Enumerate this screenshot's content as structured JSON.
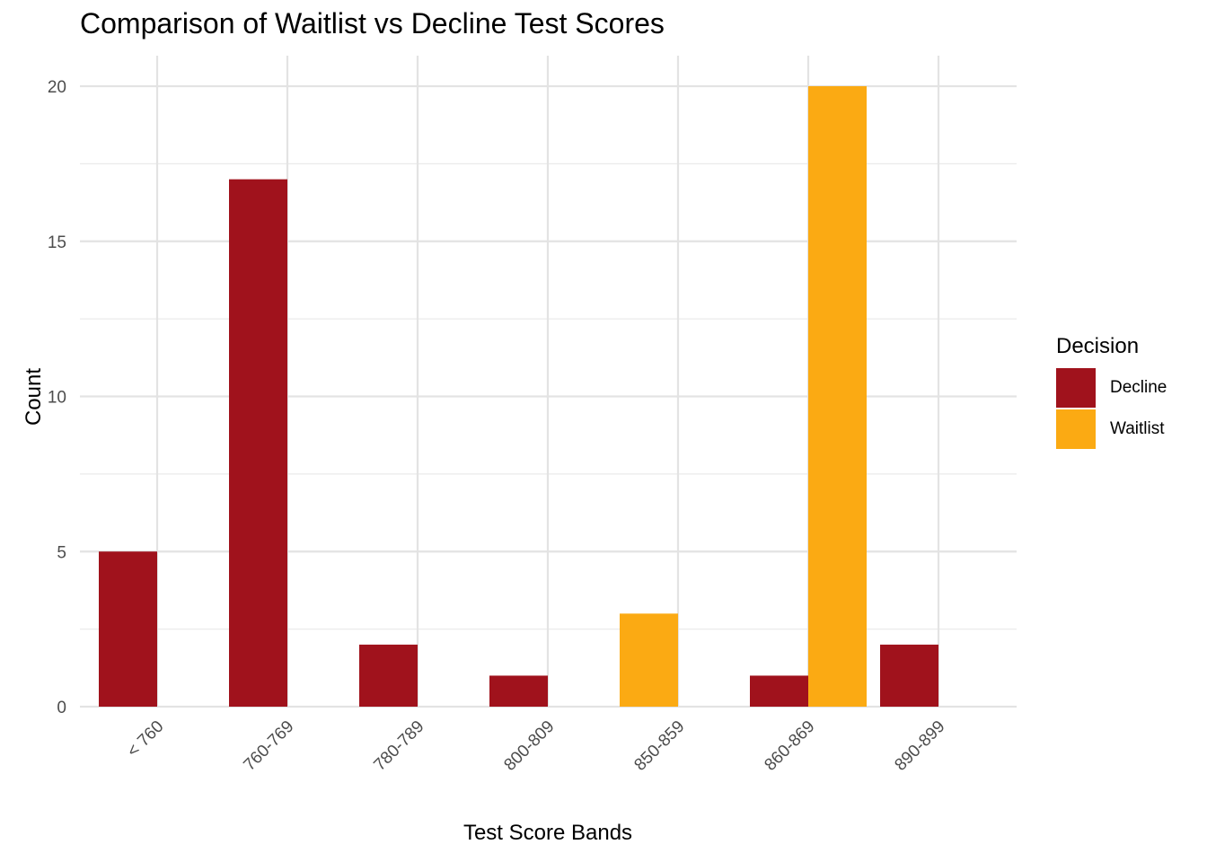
{
  "chart_data": {
    "type": "bar",
    "title": "Comparison of Waitlist vs Decline Test Scores",
    "xlabel": "Test Score Bands",
    "ylabel": "Count",
    "categories": [
      "< 760",
      "760-769",
      "780-789",
      "800-809",
      "850-859",
      "860-869",
      "890-899"
    ],
    "series": [
      {
        "name": "Decline",
        "color": "#A0121C",
        "values": [
          5,
          17,
          2,
          1,
          null,
          1,
          2
        ]
      },
      {
        "name": "Waitlist",
        "color": "#FBAA13",
        "values": [
          null,
          null,
          null,
          null,
          3,
          20,
          null
        ]
      }
    ],
    "ylim": [
      0,
      20
    ],
    "yticks": [
      0,
      5,
      10,
      15,
      20
    ],
    "grid": true,
    "legend_title": "Decision",
    "legend_position": "right",
    "bar_position": "dodge"
  }
}
